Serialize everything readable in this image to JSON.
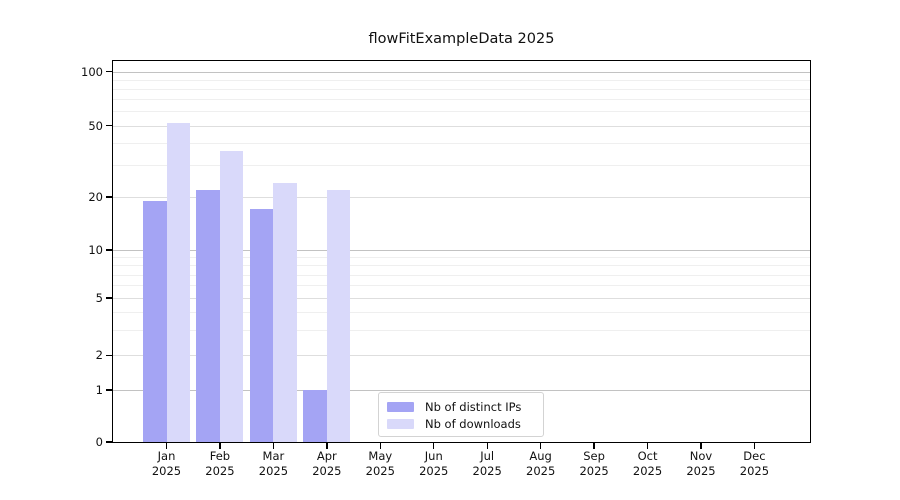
{
  "chart_data": {
    "type": "bar",
    "title": "flowFitExampleData 2025",
    "x_categories": [
      "Jan",
      "Feb",
      "Mar",
      "Apr",
      "May",
      "Jun",
      "Jul",
      "Aug",
      "Sep",
      "Oct",
      "Nov",
      "Dec"
    ],
    "x_year_suffix": "2025",
    "series": [
      {
        "name": "Nb of distinct IPs",
        "color": "#a4a4f4",
        "values": [
          19,
          22,
          17,
          1,
          null,
          null,
          null,
          null,
          null,
          null,
          null,
          null
        ]
      },
      {
        "name": "Nb of downloads",
        "color": "#d9d9fa",
        "values": [
          52,
          36,
          24,
          22,
          null,
          null,
          null,
          null,
          null,
          null,
          null,
          null
        ]
      }
    ],
    "yaxis": {
      "major_ticks": [
        0,
        1,
        2,
        5,
        10,
        20,
        50,
        100
      ],
      "minor_gridlines": [
        3,
        4,
        6,
        7,
        8,
        9,
        30,
        40,
        60,
        70,
        80,
        90
      ],
      "scale": "log above 1, linear segment 0-1",
      "range": [
        0,
        115
      ]
    },
    "legend": {
      "location": "lower center"
    },
    "grid": true
  },
  "colors": {
    "series_dark": "#a4a4f4",
    "series_light": "#d9d9fa",
    "grid_power_line": "#c2c2c2",
    "grid_major_line": "#dedede",
    "grid_minor_line": "#efefef",
    "spine": "#000000",
    "text": "#111111",
    "legend_border": "#d3d3d3"
  }
}
